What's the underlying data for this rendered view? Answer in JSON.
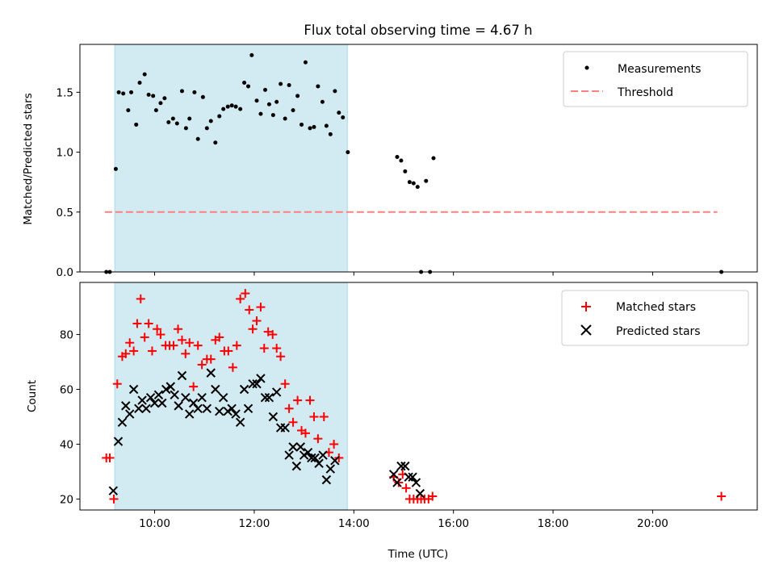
{
  "chart_data": [
    {
      "type": "scatter",
      "title": "Flux total observing time = 4.67 h",
      "xlabel": "",
      "ylabel": "Matched/Predicted stars",
      "xlim": [
        8.5,
        22.1
      ],
      "ylim": [
        0.0,
        1.9
      ],
      "yticks": [
        0.0,
        0.5,
        1.0,
        1.5
      ],
      "ytick_labels": [
        "0.0",
        "0.5",
        "1.0",
        "1.5"
      ],
      "shaded_span": {
        "x0": 9.2,
        "x1": 13.87,
        "color": "#add8e6"
      },
      "legend": {
        "position": "upper right",
        "entries": [
          "Measurements",
          "Threshold"
        ]
      },
      "series": [
        {
          "name": "Measurements",
          "kind": "scatter",
          "color": "#000000",
          "points": [
            [
              9.03,
              0.0
            ],
            [
              9.1,
              0.0
            ],
            [
              9.22,
              0.86
            ],
            [
              9.28,
              1.5
            ],
            [
              9.37,
              1.49
            ],
            [
              9.47,
              1.35
            ],
            [
              9.53,
              1.5
            ],
            [
              9.63,
              1.23
            ],
            [
              9.7,
              1.58
            ],
            [
              9.8,
              1.65
            ],
            [
              9.88,
              1.48
            ],
            [
              9.97,
              1.47
            ],
            [
              10.03,
              1.35
            ],
            [
              10.12,
              1.41
            ],
            [
              10.2,
              1.45
            ],
            [
              10.28,
              1.25
            ],
            [
              10.37,
              1.28
            ],
            [
              10.45,
              1.24
            ],
            [
              10.55,
              1.51
            ],
            [
              10.63,
              1.2
            ],
            [
              10.7,
              1.28
            ],
            [
              10.8,
              1.5
            ],
            [
              10.87,
              1.11
            ],
            [
              10.97,
              1.46
            ],
            [
              11.05,
              1.2
            ],
            [
              11.13,
              1.26
            ],
            [
              11.22,
              1.08
            ],
            [
              11.3,
              1.3
            ],
            [
              11.38,
              1.36
            ],
            [
              11.47,
              1.38
            ],
            [
              11.55,
              1.39
            ],
            [
              11.63,
              1.38
            ],
            [
              11.72,
              1.36
            ],
            [
              11.8,
              1.58
            ],
            [
              11.88,
              1.55
            ],
            [
              11.95,
              1.81
            ],
            [
              12.05,
              1.43
            ],
            [
              12.13,
              1.32
            ],
            [
              12.22,
              1.52
            ],
            [
              12.3,
              1.4
            ],
            [
              12.38,
              1.31
            ],
            [
              12.45,
              1.42
            ],
            [
              12.53,
              1.57
            ],
            [
              12.62,
              1.28
            ],
            [
              12.7,
              1.56
            ],
            [
              12.78,
              1.35
            ],
            [
              12.87,
              1.47
            ],
            [
              12.95,
              1.23
            ],
            [
              13.03,
              1.75
            ],
            [
              13.12,
              1.2
            ],
            [
              13.2,
              1.21
            ],
            [
              13.28,
              1.55
            ],
            [
              13.37,
              1.42
            ],
            [
              13.45,
              1.22
            ],
            [
              13.53,
              1.15
            ],
            [
              13.62,
              1.51
            ],
            [
              13.7,
              1.33
            ],
            [
              13.78,
              1.29
            ],
            [
              13.88,
              1.0
            ],
            [
              14.87,
              0.96
            ],
            [
              14.95,
              0.93
            ],
            [
              15.03,
              0.84
            ],
            [
              15.12,
              0.75
            ],
            [
              15.2,
              0.74
            ],
            [
              15.28,
              0.71
            ],
            [
              15.35,
              0.0
            ],
            [
              15.45,
              0.76
            ],
            [
              15.53,
              0.0
            ],
            [
              15.6,
              0.95
            ],
            [
              21.38,
              0.0
            ]
          ]
        },
        {
          "name": "Threshold",
          "kind": "dashed-line",
          "color": "#ff7f7f",
          "points": [
            [
              9.0,
              0.5
            ],
            [
              21.3,
              0.5
            ]
          ]
        }
      ]
    },
    {
      "type": "scatter",
      "title": "",
      "xlabel": "Time (UTC)",
      "ylabel": "Count",
      "xlim": [
        8.5,
        22.1
      ],
      "ylim": [
        16,
        99
      ],
      "yticks": [
        20,
        40,
        60,
        80
      ],
      "ytick_labels": [
        "20",
        "40",
        "60",
        "80"
      ],
      "xticks": [
        10,
        12,
        14,
        16,
        18,
        20
      ],
      "xtick_labels": [
        "10:00",
        "12:00",
        "14:00",
        "16:00",
        "18:00",
        "20:00"
      ],
      "shaded_span": {
        "x0": 9.2,
        "x1": 13.87,
        "color": "#add8e6"
      },
      "legend": {
        "position": "upper right",
        "entries": [
          "Matched stars",
          "Predicted stars"
        ]
      },
      "series": [
        {
          "name": "Matched stars",
          "kind": "plus",
          "color": "#ff0000",
          "points": [
            [
              9.03,
              35
            ],
            [
              9.1,
              35
            ],
            [
              9.18,
              20
            ],
            [
              9.25,
              62
            ],
            [
              9.35,
              72
            ],
            [
              9.42,
              73
            ],
            [
              9.5,
              77
            ],
            [
              9.58,
              74
            ],
            [
              9.65,
              84
            ],
            [
              9.72,
              93
            ],
            [
              9.8,
              79
            ],
            [
              9.88,
              84
            ],
            [
              9.95,
              74
            ],
            [
              10.05,
              82
            ],
            [
              10.12,
              80
            ],
            [
              10.22,
              76
            ],
            [
              10.3,
              76
            ],
            [
              10.38,
              76
            ],
            [
              10.47,
              82
            ],
            [
              10.55,
              78
            ],
            [
              10.62,
              73
            ],
            [
              10.7,
              77
            ],
            [
              10.78,
              61
            ],
            [
              10.87,
              76
            ],
            [
              10.95,
              69
            ],
            [
              11.05,
              71
            ],
            [
              11.13,
              71
            ],
            [
              11.22,
              78
            ],
            [
              11.3,
              79
            ],
            [
              11.4,
              74
            ],
            [
              11.48,
              74
            ],
            [
              11.57,
              68
            ],
            [
              11.65,
              76
            ],
            [
              11.72,
              93
            ],
            [
              11.82,
              95
            ],
            [
              11.9,
              89
            ],
            [
              11.97,
              82
            ],
            [
              12.05,
              85
            ],
            [
              12.13,
              90
            ],
            [
              12.2,
              75
            ],
            [
              12.28,
              81
            ],
            [
              12.37,
              80
            ],
            [
              12.45,
              75
            ],
            [
              12.53,
              72
            ],
            [
              12.62,
              62
            ],
            [
              12.7,
              53
            ],
            [
              12.78,
              48
            ],
            [
              12.87,
              56
            ],
            [
              12.95,
              45
            ],
            [
              13.03,
              44
            ],
            [
              13.12,
              56
            ],
            [
              13.2,
              50
            ],
            [
              13.28,
              42
            ],
            [
              13.4,
              50
            ],
            [
              13.5,
              37
            ],
            [
              13.6,
              40
            ],
            [
              13.7,
              35
            ],
            [
              14.8,
              28
            ],
            [
              14.9,
              26
            ],
            [
              14.98,
              29
            ],
            [
              15.05,
              24
            ],
            [
              15.12,
              20
            ],
            [
              15.2,
              20
            ],
            [
              15.28,
              20
            ],
            [
              15.35,
              20
            ],
            [
              15.42,
              20
            ],
            [
              15.5,
              20
            ],
            [
              15.58,
              21
            ],
            [
              21.38,
              21
            ]
          ]
        },
        {
          "name": "Predicted stars",
          "kind": "x",
          "color": "#000000",
          "points": [
            [
              9.17,
              23
            ],
            [
              9.27,
              41
            ],
            [
              9.35,
              48
            ],
            [
              9.42,
              54
            ],
            [
              9.5,
              51
            ],
            [
              9.58,
              60
            ],
            [
              9.68,
              53
            ],
            [
              9.75,
              56
            ],
            [
              9.83,
              53
            ],
            [
              9.92,
              57
            ],
            [
              10.0,
              55
            ],
            [
              10.08,
              58
            ],
            [
              10.15,
              55
            ],
            [
              10.23,
              60
            ],
            [
              10.32,
              61
            ],
            [
              10.4,
              58
            ],
            [
              10.48,
              54
            ],
            [
              10.55,
              65
            ],
            [
              10.62,
              57
            ],
            [
              10.7,
              51
            ],
            [
              10.78,
              55
            ],
            [
              10.87,
              53
            ],
            [
              10.95,
              57
            ],
            [
              11.05,
              53
            ],
            [
              11.13,
              66
            ],
            [
              11.22,
              60
            ],
            [
              11.3,
              52
            ],
            [
              11.38,
              57
            ],
            [
              11.47,
              52
            ],
            [
              11.55,
              53
            ],
            [
              11.63,
              51
            ],
            [
              11.72,
              48
            ],
            [
              11.8,
              60
            ],
            [
              11.88,
              53
            ],
            [
              11.97,
              62
            ],
            [
              12.05,
              62
            ],
            [
              12.13,
              64
            ],
            [
              12.22,
              57
            ],
            [
              12.3,
              57
            ],
            [
              12.38,
              50
            ],
            [
              12.45,
              59
            ],
            [
              12.53,
              46
            ],
            [
              12.62,
              46
            ],
            [
              12.7,
              36
            ],
            [
              12.78,
              39
            ],
            [
              12.85,
              32
            ],
            [
              12.93,
              39
            ],
            [
              13.0,
              36
            ],
            [
              13.08,
              37
            ],
            [
              13.15,
              35
            ],
            [
              13.22,
              35
            ],
            [
              13.3,
              33
            ],
            [
              13.38,
              36
            ],
            [
              13.45,
              27
            ],
            [
              13.53,
              31
            ],
            [
              13.62,
              34
            ],
            [
              14.8,
              29
            ],
            [
              14.87,
              26
            ],
            [
              14.95,
              32
            ],
            [
              15.03,
              32
            ],
            [
              15.1,
              28
            ],
            [
              15.18,
              28
            ],
            [
              15.25,
              26
            ],
            [
              15.33,
              22
            ]
          ]
        }
      ]
    }
  ]
}
